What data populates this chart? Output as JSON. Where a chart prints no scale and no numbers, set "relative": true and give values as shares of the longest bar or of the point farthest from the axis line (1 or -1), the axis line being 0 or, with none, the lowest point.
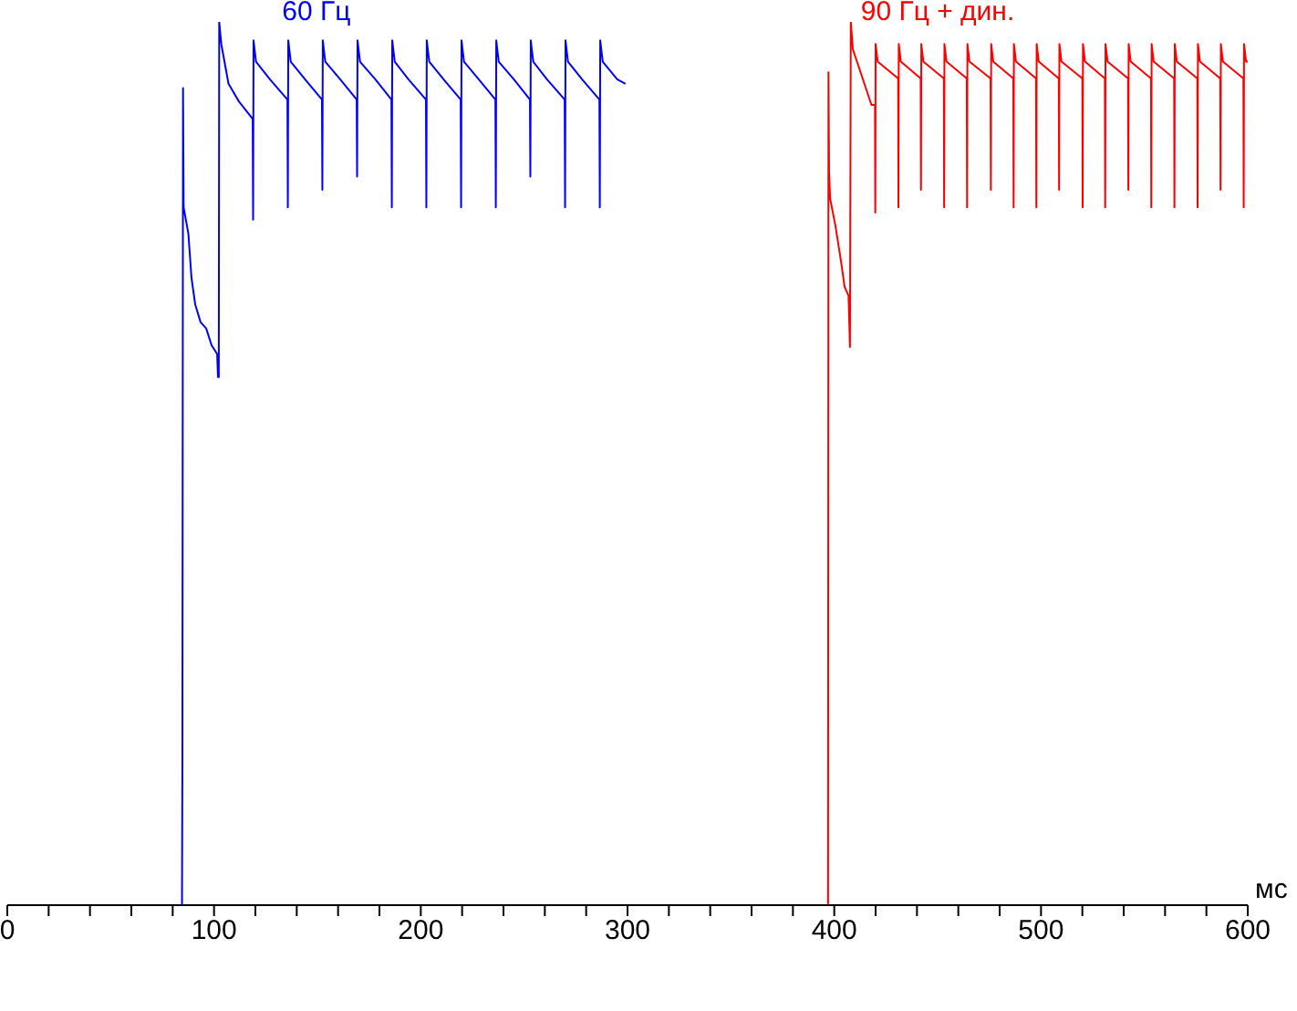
{
  "chart_data": {
    "type": "line",
    "relative": true,
    "xlabel": "мс",
    "xlim": [
      0,
      600
    ],
    "xticks": [
      0,
      {
        "value": 20,
        "label": null
      },
      {
        "value": 40,
        "label": null
      },
      {
        "value": 60,
        "label": null
      },
      {
        "value": 80,
        "label": null
      },
      100,
      {
        "value": 120,
        "label": null
      },
      {
        "value": 140,
        "label": null
      },
      {
        "value": 160,
        "label": null
      },
      {
        "value": 180,
        "label": null
      },
      200,
      {
        "value": 220,
        "label": null
      },
      {
        "value": 240,
        "label": null
      },
      {
        "value": 260,
        "label": null
      },
      {
        "value": 280,
        "label": null
      },
      300,
      {
        "value": 320,
        "label": null
      },
      {
        "value": 340,
        "label": null
      },
      {
        "value": 360,
        "label": null
      },
      {
        "value": 380,
        "label": null
      },
      400,
      {
        "value": 420,
        "label": null
      },
      {
        "value": 440,
        "label": null
      },
      {
        "value": 460,
        "label": null
      },
      {
        "value": 480,
        "label": null
      },
      500,
      {
        "value": 520,
        "label": null
      },
      {
        "value": 540,
        "label": null
      },
      {
        "value": 560,
        "label": null
      },
      {
        "value": 580,
        "label": null
      },
      600
    ],
    "series": [
      {
        "name": "60 Гц",
        "color": "#0000ff",
        "x": [
          0,
          84.5,
          84.7,
          85.0,
          85.3,
          87.6,
          89.1,
          90.9,
          93.5,
          96.2,
          98.8,
          101.5,
          101.9,
          102.3,
          102.5,
          103.5,
          107,
          112,
          118.7,
          118.9,
          119.1,
          120.3,
          127,
          135.5,
          135.7,
          135.9,
          137.1,
          144,
          152.2,
          152.4,
          152.6,
          153.8,
          161,
          169.0,
          169.2,
          169.4,
          170.6,
          178,
          185.8,
          186.0,
          186.2,
          187.4,
          194,
          202.5,
          202.7,
          202.9,
          204.1,
          211,
          219.3,
          219.5,
          219.7,
          220.9,
          228,
          236.1,
          236.3,
          236.5,
          237.7,
          245,
          252.8,
          253.0,
          253.2,
          254.4,
          261,
          269.6,
          269.8,
          270.0,
          271.2,
          278,
          286.4,
          286.6,
          286.8,
          288.0,
          295,
          299
        ],
        "values": [
          0,
          0,
          0.17,
          0.925,
          0.79,
          0.76,
          0.71,
          0.68,
          0.66,
          0.653,
          0.634,
          0.624,
          0.598,
          0.598,
          1.0,
          0.975,
          0.93,
          0.91,
          0.89,
          0.776,
          0.979,
          0.955,
          0.935,
          0.912,
          0.79,
          0.979,
          0.955,
          0.935,
          0.912,
          0.81,
          0.979,
          0.955,
          0.935,
          0.912,
          0.825,
          0.979,
          0.955,
          0.935,
          0.912,
          0.79,
          0.979,
          0.955,
          0.935,
          0.912,
          0.79,
          0.979,
          0.955,
          0.935,
          0.912,
          0.79,
          0.979,
          0.955,
          0.935,
          0.912,
          0.79,
          0.979,
          0.955,
          0.935,
          0.912,
          0.825,
          0.979,
          0.955,
          0.935,
          0.912,
          0.79,
          0.979,
          0.955,
          0.935,
          0.912,
          0.79,
          0.979,
          0.955,
          0.935,
          0.93
        ]
      },
      {
        "name": "90 Гц + дин.",
        "color": "#ff0000",
        "x": [
          300,
          397.0,
          397.2,
          397.5,
          398,
          400.5,
          403.2,
          405,
          406.9,
          407.6,
          408.0,
          409,
          418,
          419.7,
          419.85,
          420.0,
          421.0,
          430.9,
          431.05,
          431.2,
          432.2,
          441.8,
          441.95,
          442.1,
          443.1,
          453.0,
          453.15,
          453.3,
          454.3,
          464.1,
          464.25,
          464.4,
          465.4,
          475.6,
          475.75,
          475.9,
          476.9,
          486.6,
          486.75,
          486.9,
          487.9,
          497.6,
          497.75,
          497.9,
          498.9,
          508.6,
          508.75,
          508.9,
          509.9,
          520.0,
          520.15,
          520.3,
          521.3,
          530.9,
          531.05,
          531.2,
          532.2,
          542.1,
          542.25,
          542.4,
          543.4,
          553.2,
          553.35,
          553.5,
          554.5,
          564.4,
          564.55,
          564.7,
          565.7,
          575.6,
          575.75,
          575.9,
          576.9,
          586.7,
          586.85,
          587.0,
          588.0,
          597.9,
          598.05,
          598.2,
          599.2,
          600
        ],
        "values": [
          0,
          0,
          0.943,
          0.83,
          0.8,
          0.77,
          0.73,
          0.7,
          0.69,
          0.632,
          1.0,
          0.969,
          0.906,
          0.906,
          0.784,
          0.975,
          0.955,
          0.936,
          0.79,
          0.975,
          0.955,
          0.936,
          0.81,
          0.975,
          0.955,
          0.936,
          0.79,
          0.975,
          0.955,
          0.936,
          0.79,
          0.975,
          0.955,
          0.936,
          0.81,
          0.975,
          0.955,
          0.936,
          0.79,
          0.975,
          0.955,
          0.936,
          0.79,
          0.975,
          0.955,
          0.936,
          0.81,
          0.975,
          0.955,
          0.936,
          0.79,
          0.975,
          0.955,
          0.936,
          0.79,
          0.975,
          0.955,
          0.936,
          0.81,
          0.975,
          0.955,
          0.936,
          0.79,
          0.975,
          0.955,
          0.936,
          0.79,
          0.975,
          0.955,
          0.936,
          0.79,
          0.975,
          0.955,
          0.936,
          0.81,
          0.975,
          0.955,
          0.936,
          0.79,
          0.975,
          0.955,
          0.955
        ]
      }
    ]
  }
}
